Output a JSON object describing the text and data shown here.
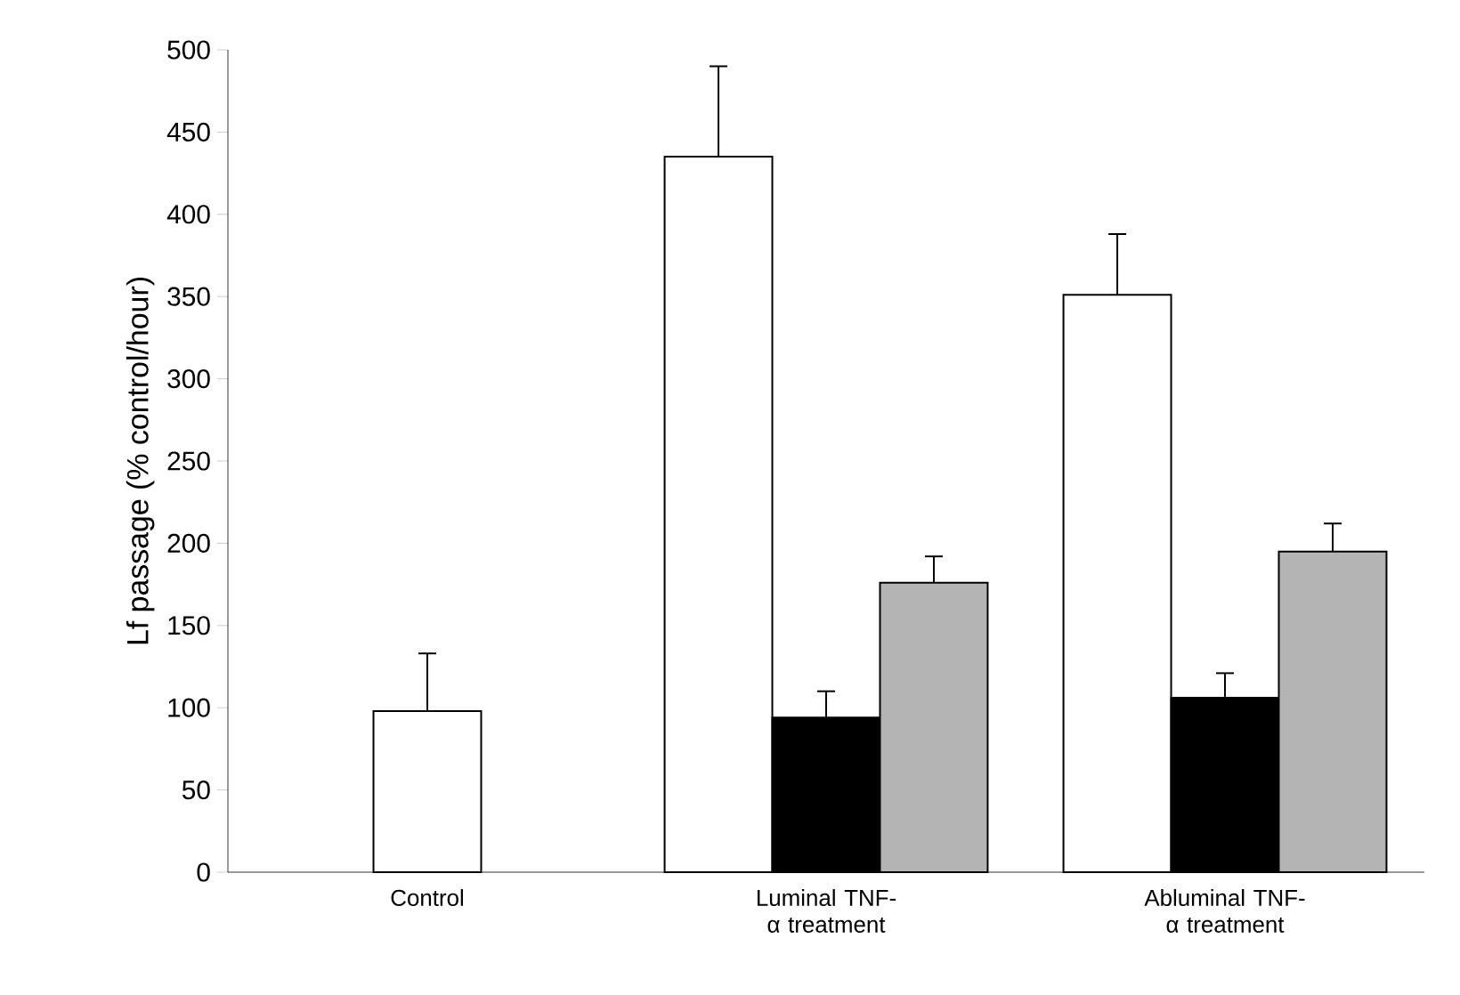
{
  "chart_data": {
    "type": "bar",
    "ylabel": "Lf passage (% control/hour)",
    "categories": [
      "Control",
      "Luminal TNF-α treatment",
      "Abluminal TNF-α treatment"
    ],
    "series": [
      {
        "color": "#ffffff",
        "values": [
          98,
          435,
          351
        ],
        "errors": [
          [
            98,
            133
          ],
          [
            435,
            490
          ],
          [
            351,
            388
          ]
        ]
      },
      {
        "color": "#000000",
        "values": [
          null,
          94,
          106
        ],
        "errors": [
          null,
          [
            94,
            110
          ],
          [
            106,
            121
          ]
        ]
      },
      {
        "color": "#b4b4b4",
        "values": [
          null,
          176,
          195
        ],
        "errors": [
          null,
          [
            176,
            192
          ],
          [
            195,
            212
          ]
        ]
      }
    ],
    "ylim": [
      0,
      500
    ],
    "yticks": [
      0,
      50,
      100,
      150,
      200,
      250,
      300,
      350,
      400,
      450,
      500
    ],
    "grid": false
  }
}
